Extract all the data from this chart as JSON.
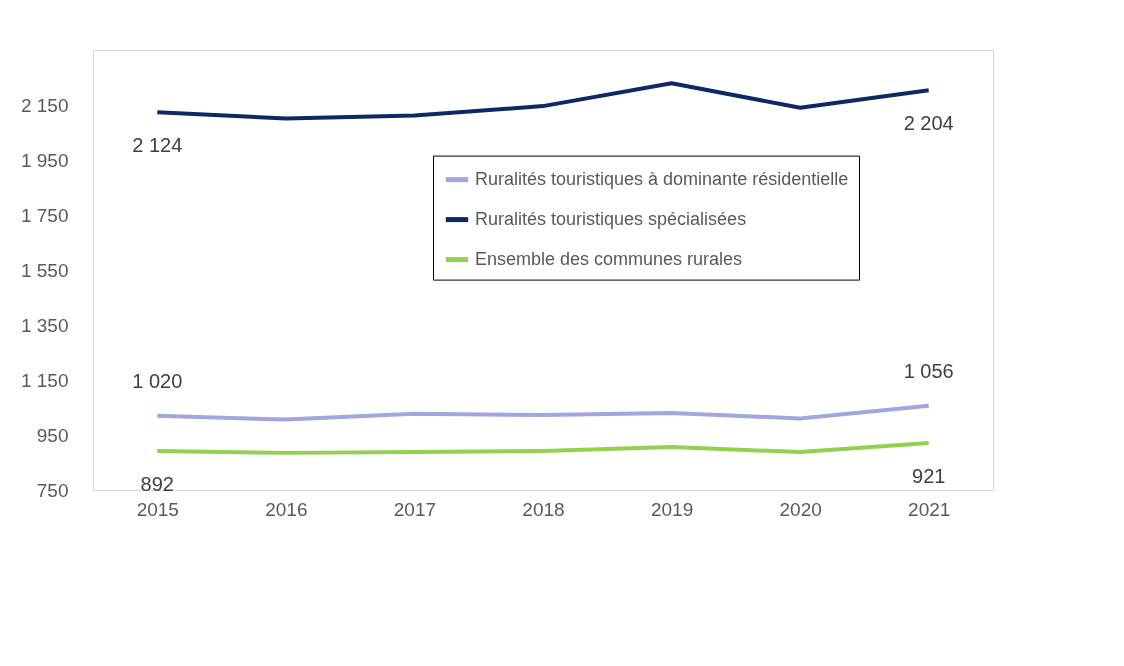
{
  "chart_data": {
    "type": "line",
    "categories": [
      "2015",
      "2016",
      "2017",
      "2018",
      "2019",
      "2020",
      "2021"
    ],
    "series": [
      {
        "name": "Ruralités touristiques à dominante résidentielle",
        "color": "#a0a6de",
        "values": [
          1020,
          1006,
          1027,
          1023,
          1030,
          1010,
          1056
        ],
        "value_labels": [
          "1 020",
          null,
          null,
          null,
          null,
          null,
          "1 056"
        ]
      },
      {
        "name": "Ruralités touristiques spécialisées",
        "color": "#0e2865",
        "values": [
          2124,
          2101,
          2112,
          2146,
          2229,
          2140,
          2204
        ],
        "value_labels": [
          "2 124",
          null,
          null,
          null,
          null,
          null,
          "2 204"
        ]
      },
      {
        "name": "Ensemble des communes rurales",
        "color": "#92d050",
        "values": [
          892,
          885,
          888,
          892,
          906,
          888,
          921
        ],
        "value_labels": [
          "892",
          null,
          null,
          null,
          null,
          null,
          "921"
        ]
      }
    ],
    "ylim": [
      750,
      2350
    ],
    "yticks": [
      {
        "value": 750,
        "label": "750"
      },
      {
        "value": 950,
        "label": "950"
      },
      {
        "value": 1150,
        "label": "1 150"
      },
      {
        "value": 1350,
        "label": "1 350"
      },
      {
        "value": 1550,
        "label": "1 550"
      },
      {
        "value": 1750,
        "label": "1 750"
      },
      {
        "value": 1950,
        "label": "1 950"
      },
      {
        "value": 2150,
        "label": "2 150"
      }
    ],
    "grid": false,
    "legend": "top right",
    "marker": "none",
    "line_style": "solid"
  }
}
